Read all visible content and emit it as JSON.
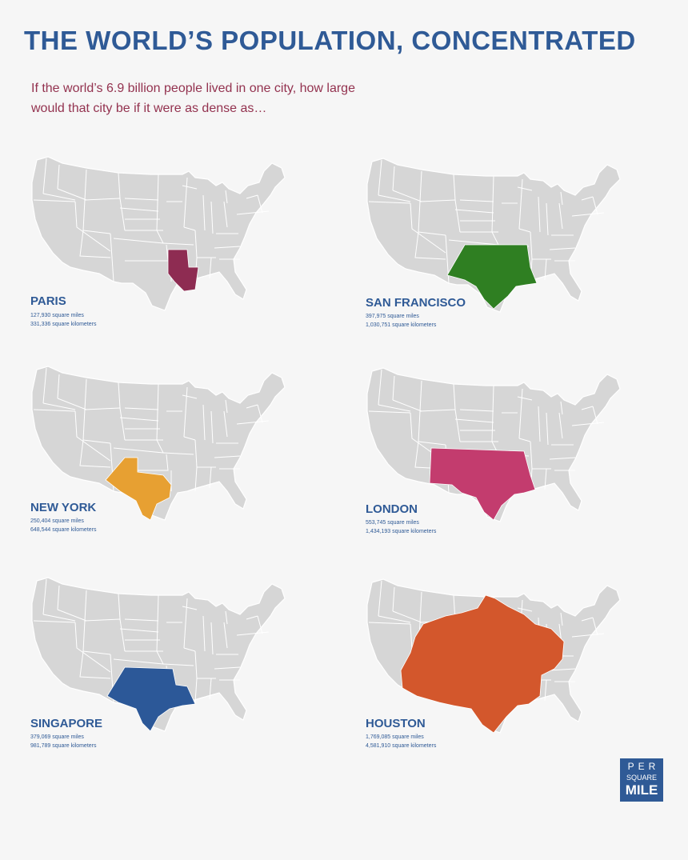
{
  "header": {
    "title": "THE WORLD’S POPULATION, CONCENTRATED",
    "subtitle_line1": "If the world’s 6.9 billion people lived in one city, how large",
    "subtitle_line2": "would that city be if it were as dense as…"
  },
  "colors": {
    "base_map": "#d6d6d6",
    "state_border": "#ffffff",
    "text_blue": "#2f5a96",
    "subtitle": "#93324f"
  },
  "cities": [
    {
      "name": "PARIS",
      "sq_miles": "127,930 square miles",
      "sq_km": "331,336 square kilometers",
      "color": "#8e2c52",
      "highlight_shape": "south-central-small"
    },
    {
      "name": "SAN FRANCISCO",
      "sq_miles": "397,975 square miles",
      "sq_km": "1,030,751 square kilometers",
      "color": "#2f7f22",
      "highlight_shape": "texas-oklahoma-arkansas-louisiana"
    },
    {
      "name": "NEW YORK",
      "sq_miles": "250,404 square miles",
      "sq_km": "648,544 square kilometers",
      "color": "#e7a032",
      "highlight_shape": "texas"
    },
    {
      "name": "LONDON",
      "sq_miles": "553,745 square miles",
      "sq_km": "1,434,193 square kilometers",
      "color": "#c33c6e",
      "highlight_shape": "new-mexico-texas-oklahoma-arkansas-louisiana"
    },
    {
      "name": "SINGAPORE",
      "sq_miles": "379,069 square miles",
      "sq_km": "981,789 square kilometers",
      "color": "#2c5898",
      "highlight_shape": "texas-oklahoma-louisiana"
    },
    {
      "name": "HOUSTON",
      "sq_miles": "1,769,085 square miles",
      "sq_km": "4,581,910 square kilometers",
      "color": "#d3572c",
      "highlight_shape": "central-and-southwest-states"
    }
  ],
  "logo": {
    "line1": "PER",
    "line2": "SQUARE",
    "line3": "MILE"
  }
}
